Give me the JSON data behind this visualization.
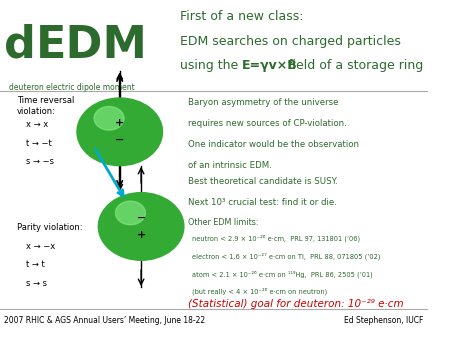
{
  "bg_color": "#ffffff",
  "title_color": "#2d6a2d",
  "text_color": "#2d6a2d",
  "red_color": "#cc0000",
  "cyan_color": "#00aacc",
  "black_color": "#000000",
  "gray_color": "#666666",
  "dedm_text": "dEDM",
  "dedm_sub": "deuteron electric dipole moment",
  "header_line1": "First of a new class:",
  "header_line2": "EDM searches on charged particles",
  "header_line3": "using the E=γv×B field of a storage ring",
  "time_reversal_title": "Time reversal\nviolation:",
  "time_reversal_lines": [
    "x → x",
    "t → −t",
    "s → −s"
  ],
  "parity_title": "Parity violation:",
  "parity_lines": [
    "x → −x",
    "t → t",
    "s → s"
  ],
  "baryon_text": "Baryon asymmetry of the universe\nrequires new sources of CP-violation.\nOne indicator would be the observation\nof an intrinsic EDM.",
  "best_text": "Best theoretical candidate is SUSY.\nNext 10³ crucial test: find it or die.",
  "other_edm_title": "Other EDM limits:",
  "other_edm_lines": [
    "neutron < 2.9 × 10⁻²⁶ e·cm,  PRL 97, 131801 (’06)",
    "electron < 1.6 × 10⁻²⁷ e·cm on Tl,  PRL 88, 071805 (’02)",
    "atom < 2.1 × 10⁻²⁶ e·cm on ¹¹⁹Hg,  PRL 86, 2505 (’01)",
    "(but really < 4 × 10⁻²⁶ e·cm on neutron)"
  ],
  "stat_goal": "(Statistical) goal for deuteron: 10⁻²⁹ e·cm",
  "footer_left": "2007 RHIC & AGS Annual Users’ Meeting, June 18-22",
  "footer_right": "Ed Stephenson, IUCF"
}
